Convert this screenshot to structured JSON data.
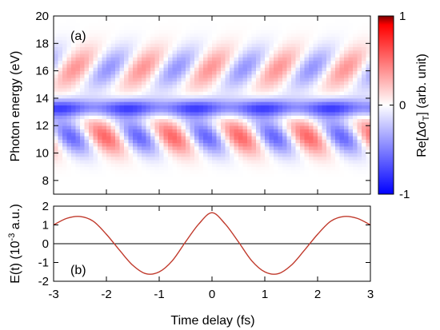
{
  "chart_data": [
    {
      "type": "heatmap",
      "panel_label": "(a)",
      "ylabel": "Photon energy (eV)",
      "xlim": [
        -3,
        3
      ],
      "ylim": [
        7,
        20
      ],
      "yticks": [
        "8",
        "10",
        "12",
        "14",
        "16",
        "18",
        "20"
      ],
      "colorbar": {
        "label": "Re[Δσ",
        "label_sub": "T",
        "label_tail": "] (arb. unit)",
        "ticks": [
          "1",
          "0",
          "-1"
        ],
        "range": [
          -1,
          1
        ],
        "colors": {
          "low": "#0000ff",
          "mid": "#ffffff",
          "high": "#ff0000",
          "top": "#7a0000"
        }
      },
      "features": [
        {
          "kind": "negative band",
          "energy_center_eV": 13.3,
          "energy_width_eV": 1.0,
          "strongest_at_fs": [
            -1.6,
            -0.3,
            1.0,
            2.2
          ]
        },
        {
          "kind": "positive fringes",
          "energy_range_eV": [
            9.5,
            12.5
          ],
          "peak_near_fs": [
            -2.0,
            -0.8,
            0.5,
            1.6
          ]
        },
        {
          "kind": "positive fringes",
          "energy_range_eV": [
            14.5,
            17.5
          ],
          "peak_near_fs": [
            -1.2,
            0.0,
            1.3,
            2.5
          ]
        }
      ]
    },
    {
      "type": "line",
      "panel_label": "(b)",
      "xlabel": "Time delay (fs)",
      "ylabel": "E(t) (10",
      "ylabel_sup": "-3",
      "ylabel_tail": " a.u.)",
      "xlim": [
        -3,
        3
      ],
      "ylim": [
        -2,
        2
      ],
      "xticks": [
        "-3",
        "-2",
        "-1",
        "0",
        "1",
        "2",
        "3"
      ],
      "yticks": [
        "2",
        "1",
        "0",
        "-1",
        "-2"
      ],
      "series": [
        {
          "color": "#c0392b",
          "x": [
            -3.0,
            -2.75,
            -2.5,
            -2.25,
            -2.0,
            -1.75,
            -1.5,
            -1.25,
            -1.0,
            -0.75,
            -0.5,
            -0.25,
            0.0,
            0.25,
            0.5,
            0.75,
            1.0,
            1.25,
            1.5,
            1.75,
            2.0,
            2.25,
            2.5,
            2.75,
            3.0
          ],
          "values": [
            1.0,
            1.35,
            1.45,
            1.2,
            0.5,
            -0.35,
            -1.15,
            -1.6,
            -1.5,
            -0.9,
            0.1,
            1.05,
            1.65,
            1.05,
            0.1,
            -0.9,
            -1.5,
            -1.6,
            -1.15,
            -0.35,
            0.5,
            1.2,
            1.45,
            1.35,
            1.0
          ]
        }
      ]
    }
  ]
}
